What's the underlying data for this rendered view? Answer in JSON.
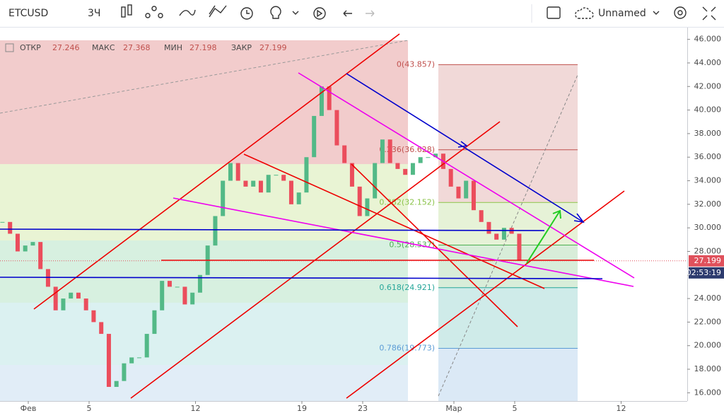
{
  "toolbar": {
    "symbol": "ETCUSD",
    "interval": "3Ч",
    "layout_name": "Unnamed"
  },
  "ohlc": {
    "open_label": "ОТКР",
    "open": 27.246,
    "high_label": "МАКС",
    "high": 27.368,
    "low_label": "МИН",
    "low": 27.198,
    "close_label": "ЗАКР",
    "close": 27.199
  },
  "chart_data": {
    "type": "candlestick",
    "x": [
      -1.7,
      -1.2,
      -0.7,
      -0.2,
      0.3,
      0.8,
      1.3,
      1.8,
      2.3,
      2.8,
      3.3,
      3.8,
      4.3,
      4.8,
      5.3,
      5.8,
      6.3,
      6.8,
      7.3,
      7.8,
      8.3,
      8.8,
      9.3,
      9.8,
      10.3,
      10.8,
      11.3,
      11.8,
      12.3,
      12.8,
      13.3,
      13.8,
      14.3,
      14.8,
      15.3,
      15.8,
      16.3,
      16.8,
      17.3,
      17.8,
      18.3,
      18.8,
      19.3,
      19.8,
      20.3,
      20.8,
      21.3,
      21.8,
      22.3,
      22.8,
      23.3,
      23.8,
      24.3,
      24.8,
      25.3,
      25.8,
      26.3,
      26.8,
      27.3,
      27.8,
      28.3,
      28.8,
      29.3,
      29.8,
      30.3,
      30.8,
      31.3,
      31.8,
      32.3
    ],
    "close": [
      30.5,
      29.5,
      28,
      28.5,
      28.8,
      26.5,
      25,
      23,
      24,
      24.5,
      24,
      23,
      22,
      21,
      16.5,
      17,
      18.5,
      19,
      19,
      21,
      23,
      25.5,
      25,
      25,
      23.5,
      24.5,
      26,
      28.5,
      31,
      34,
      35.5,
      34,
      33.5,
      34,
      33,
      34.5,
      34.5,
      34,
      32,
      33,
      36,
      39.5,
      42,
      40,
      37,
      35.5,
      33.5,
      31,
      32.5,
      35.5,
      37.5,
      35.5,
      35,
      34.5,
      35.5,
      36,
      36,
      36.3,
      35,
      33.5,
      32.5,
      34,
      31.5,
      30.5,
      29.5,
      29,
      30,
      29.5,
      27.2
    ],
    "up_color": "#53b987",
    "down_color": "#eb4d5c",
    "xlim": [
      -1.86,
      43.35
    ],
    "xticks": [
      {
        "value": 0,
        "label": "Фев"
      },
      {
        "value": 4,
        "label": "5"
      },
      {
        "value": 11,
        "label": "12"
      },
      {
        "value": 18,
        "label": "19"
      },
      {
        "value": 22,
        "label": "23"
      },
      {
        "value": 28,
        "label": "Мар"
      },
      {
        "value": 32,
        "label": "5"
      },
      {
        "value": 39,
        "label": "12"
      }
    ],
    "ylim": [
      15.3,
      47
    ],
    "yticks": [
      {
        "value": 16,
        "label": "16.000"
      },
      {
        "value": 18,
        "label": "18.000"
      },
      {
        "value": 20,
        "label": "20.000"
      },
      {
        "value": 22,
        "label": "22.000"
      },
      {
        "value": 24,
        "label": "24.000"
      },
      {
        "value": 26,
        "label": "26.000"
      },
      {
        "value": 28,
        "label": "28.000"
      },
      {
        "value": 30,
        "label": "30.000"
      },
      {
        "value": 32,
        "label": "32.000"
      },
      {
        "value": 34,
        "label": "34.000"
      },
      {
        "value": 36,
        "label": "36.000"
      },
      {
        "value": 38,
        "label": "38.000"
      },
      {
        "value": 40,
        "label": "40.000"
      },
      {
        "value": 42,
        "label": "42.000"
      },
      {
        "value": 44,
        "label": "44.000"
      },
      {
        "value": 46,
        "label": "46.000"
      }
    ],
    "fib_levels": [
      {
        "value": 43.857,
        "label": "0(43.857)",
        "color": "#c0504d"
      },
      {
        "value": 36.628,
        "label": "0.236(36.628)",
        "color": "#c0504d"
      },
      {
        "value": 32.152,
        "label": "0.382(32.152)",
        "color": "#8bc34a"
      },
      {
        "value": 28.537,
        "label": "0.5(28.537)",
        "color": "#4caf50"
      },
      {
        "value": 24.921,
        "label": "0.618(24.921)",
        "color": "#26a69a"
      },
      {
        "value": 19.773,
        "label": "0.786(19.773)",
        "color": "#5b9bd5"
      }
    ],
    "last_price": {
      "value": 27.199,
      "label": "27.199",
      "countdown": "02:53:19"
    }
  }
}
